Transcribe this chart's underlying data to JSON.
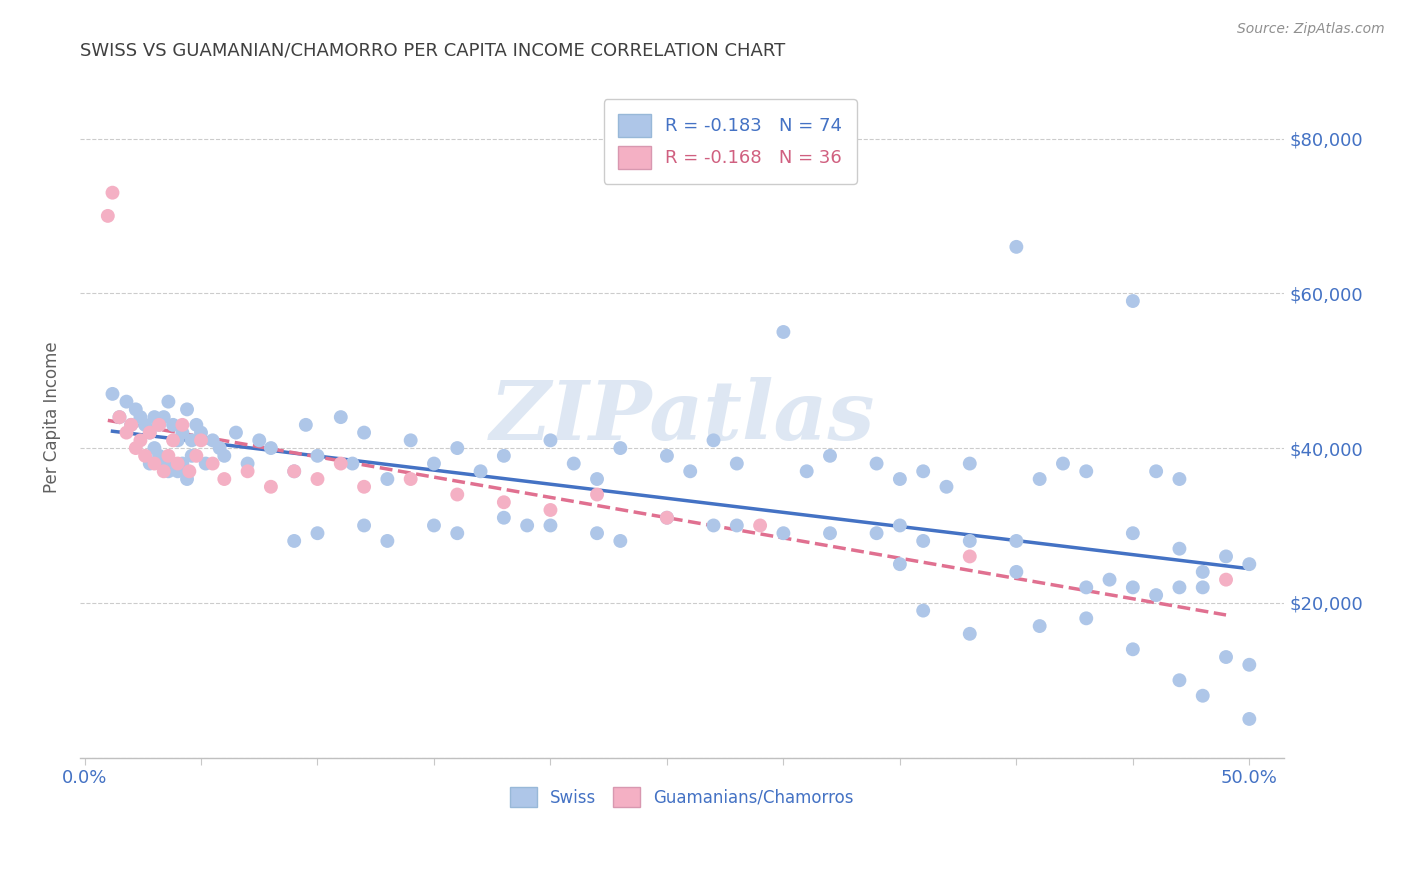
{
  "title": "SWISS VS GUAMANIAN/CHAMORRO PER CAPITA INCOME CORRELATION CHART",
  "source_text": "Source: ZipAtlas.com",
  "ylabel": "Per Capita Income",
  "xlim": [
    -0.002,
    0.515
  ],
  "ylim": [
    0,
    88000
  ],
  "yticks": [
    0,
    20000,
    40000,
    60000,
    80000
  ],
  "ytick_labels_right": [
    "",
    "$20,000",
    "$40,000",
    "$60,000",
    "$80,000"
  ],
  "xticks": [
    0.0,
    0.05,
    0.1,
    0.15,
    0.2,
    0.25,
    0.3,
    0.35,
    0.4,
    0.45,
    0.5
  ],
  "xtick_labels": [
    "0.0%",
    "",
    "",
    "",
    "",
    "",
    "",
    "",
    "",
    "",
    "50.0%"
  ],
  "swiss_color": "#aec6e8",
  "guam_color": "#f4b0c4",
  "swiss_line_color": "#4472c4",
  "guam_line_color": "#e07090",
  "title_color": "#404040",
  "axis_label_color": "#4472c4",
  "source_color": "#909090",
  "watermark_text": "ZIPatlas",
  "legend_r_swiss": "R = -0.183",
  "legend_n_swiss": "N = 74",
  "legend_r_guam": "R = -0.168",
  "legend_n_guam": "N = 36",
  "swiss_x": [
    0.012,
    0.015,
    0.018,
    0.02,
    0.022,
    0.024,
    0.026,
    0.028,
    0.028,
    0.03,
    0.03,
    0.032,
    0.032,
    0.034,
    0.034,
    0.036,
    0.036,
    0.038,
    0.038,
    0.04,
    0.04,
    0.042,
    0.042,
    0.044,
    0.044,
    0.046,
    0.046,
    0.048,
    0.05,
    0.052,
    0.055,
    0.058,
    0.06,
    0.065,
    0.07,
    0.075,
    0.08,
    0.09,
    0.095,
    0.1,
    0.11,
    0.115,
    0.12,
    0.13,
    0.14,
    0.15,
    0.16,
    0.17,
    0.18,
    0.2,
    0.21,
    0.22,
    0.23,
    0.25,
    0.26,
    0.27,
    0.28,
    0.3,
    0.31,
    0.32,
    0.34,
    0.35,
    0.36,
    0.37,
    0.38,
    0.4,
    0.41,
    0.42,
    0.43,
    0.45,
    0.46,
    0.47,
    0.48,
    0.5
  ],
  "swiss_y": [
    47000,
    44000,
    46000,
    43000,
    45000,
    44000,
    43000,
    42000,
    38000,
    44000,
    40000,
    43000,
    39000,
    44000,
    38000,
    46000,
    37000,
    43000,
    38000,
    41000,
    37000,
    42000,
    38000,
    45000,
    36000,
    41000,
    39000,
    43000,
    42000,
    38000,
    41000,
    40000,
    39000,
    42000,
    38000,
    41000,
    40000,
    37000,
    43000,
    39000,
    44000,
    38000,
    42000,
    36000,
    41000,
    38000,
    40000,
    37000,
    39000,
    41000,
    38000,
    36000,
    40000,
    39000,
    37000,
    41000,
    38000,
    55000,
    37000,
    39000,
    38000,
    36000,
    37000,
    35000,
    38000,
    66000,
    36000,
    38000,
    37000,
    59000,
    37000,
    36000,
    22000,
    25000
  ],
  "swiss_outliers_x": [
    0.38,
    0.49,
    0.34,
    0.45,
    0.35,
    0.47,
    0.3,
    0.4,
    0.25,
    0.27,
    0.23,
    0.28,
    0.32,
    0.36,
    0.15,
    0.2,
    0.22,
    0.18,
    0.19,
    0.16,
    0.13,
    0.12,
    0.1,
    0.09
  ],
  "swiss_outliers_y": [
    28000,
    26000,
    29000,
    29000,
    30000,
    27000,
    29000,
    28000,
    31000,
    30000,
    28000,
    30000,
    29000,
    28000,
    30000,
    30000,
    29000,
    31000,
    30000,
    29000,
    28000,
    30000,
    29000,
    28000
  ],
  "swiss_low_x": [
    0.35,
    0.4,
    0.43,
    0.44,
    0.45,
    0.46,
    0.47,
    0.48,
    0.49,
    0.5
  ],
  "swiss_low_y": [
    25000,
    24000,
    22000,
    23000,
    22000,
    21000,
    22000,
    24000,
    13000,
    12000
  ],
  "swiss_vlow_x": [
    0.36,
    0.38,
    0.41,
    0.43,
    0.45,
    0.47,
    0.48,
    0.5
  ],
  "swiss_vlow_y": [
    19000,
    16000,
    17000,
    18000,
    14000,
    10000,
    8000,
    5000
  ],
  "guam_x": [
    0.01,
    0.012,
    0.015,
    0.018,
    0.02,
    0.022,
    0.024,
    0.026,
    0.028,
    0.03,
    0.032,
    0.034,
    0.036,
    0.038,
    0.04,
    0.042,
    0.045,
    0.048,
    0.05,
    0.055,
    0.06,
    0.07,
    0.08,
    0.09,
    0.1,
    0.11,
    0.12,
    0.14,
    0.16,
    0.18,
    0.2,
    0.22,
    0.25,
    0.29,
    0.38,
    0.49
  ],
  "guam_y": [
    70000,
    73000,
    44000,
    42000,
    43000,
    40000,
    41000,
    39000,
    42000,
    38000,
    43000,
    37000,
    39000,
    41000,
    38000,
    43000,
    37000,
    39000,
    41000,
    38000,
    36000,
    37000,
    35000,
    37000,
    36000,
    38000,
    35000,
    36000,
    34000,
    33000,
    32000,
    34000,
    31000,
    30000,
    26000,
    23000
  ]
}
